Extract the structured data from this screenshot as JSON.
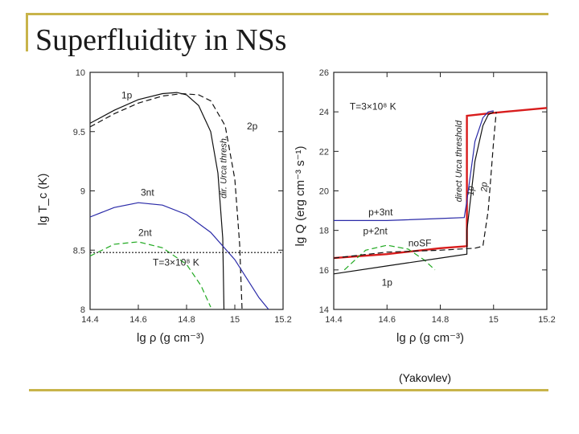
{
  "slide": {
    "title": "Superfluidity in NSs",
    "credit": "(Yakovlev)",
    "accent_color": "#c8b44a"
  },
  "chart_data": [
    {
      "type": "line",
      "xlabel": "lg ρ (g cm⁻³)",
      "ylabel": "lg T_c (K)",
      "xlim": [
        14.4,
        15.2
      ],
      "ylim": [
        8,
        10
      ],
      "xticks": [
        "14.4",
        "14.6",
        "14.8",
        "15",
        "15.2"
      ],
      "yticks": [
        "8",
        "8.5",
        "9",
        "9.5",
        "10"
      ],
      "grid": false,
      "series": [
        {
          "name": "1p",
          "color": "#111111",
          "dash": "solid",
          "x": [
            14.4,
            14.5,
            14.6,
            14.7,
            14.76,
            14.8,
            14.85,
            14.9,
            14.93,
            14.95,
            14.955
          ],
          "y": [
            9.57,
            9.68,
            9.77,
            9.82,
            9.83,
            9.81,
            9.72,
            9.5,
            9.15,
            8.6,
            8.0
          ]
        },
        {
          "name": "",
          "color": "#111111",
          "dash": "dashed",
          "x": [
            14.4,
            14.5,
            14.6,
            14.7,
            14.78,
            14.85,
            14.9,
            14.96,
            15.0,
            15.02,
            15.03
          ],
          "y": [
            9.54,
            9.65,
            9.74,
            9.8,
            9.82,
            9.81,
            9.76,
            9.55,
            9.1,
            8.55,
            8.0
          ]
        },
        {
          "name": "3nt",
          "color": "#2a2aa8",
          "dash": "solid",
          "x": [
            14.4,
            14.5,
            14.6,
            14.7,
            14.8,
            14.9,
            15.0,
            15.1,
            15.14
          ],
          "y": [
            8.78,
            8.86,
            8.9,
            8.88,
            8.8,
            8.65,
            8.42,
            8.1,
            8.0
          ]
        },
        {
          "name": "2nt",
          "color": "#22aa22",
          "dash": "dashed",
          "x": [
            14.4,
            14.5,
            14.6,
            14.7,
            14.8,
            14.86,
            14.9
          ],
          "y": [
            8.45,
            8.55,
            8.57,
            8.52,
            8.38,
            8.2,
            8.02
          ]
        },
        {
          "name": "",
          "color": "#111111",
          "dash": "dotted",
          "x": [
            14.4,
            15.2
          ],
          "y": [
            8.48,
            8.48
          ]
        }
      ],
      "annotations": [
        {
          "text": "1p",
          "x": 14.53,
          "y": 9.78
        },
        {
          "text": "2p",
          "x": 15.05,
          "y": 9.52
        },
        {
          "text": "3nt",
          "x": 14.61,
          "y": 8.96
        },
        {
          "text": "2nt",
          "x": 14.6,
          "y": 8.62
        },
        {
          "text": "T=3×10⁸ K",
          "x": 14.66,
          "y": 8.37
        },
        {
          "text": "dir. Urca thresh.",
          "x": 14.965,
          "y": 9.2,
          "rotate": -90
        }
      ]
    },
    {
      "type": "line",
      "xlabel": "lg ρ (g cm⁻³)",
      "ylabel": "lg Q (erg cm⁻³ s⁻¹)",
      "xlim": [
        14.4,
        15.2
      ],
      "ylim": [
        14,
        26
      ],
      "xticks": [
        "14.4",
        "14.6",
        "14.8",
        "15",
        "15.2"
      ],
      "yticks": [
        "14",
        "16",
        "18",
        "20",
        "22",
        "24",
        "26"
      ],
      "grid": false,
      "series": [
        {
          "name": "noSF",
          "color": "#d81c1c",
          "dash": "solid",
          "x": [
            14.4,
            14.6,
            14.8,
            14.9,
            14.9,
            15.0,
            15.2
          ],
          "y": [
            16.6,
            16.8,
            17.1,
            17.2,
            23.8,
            23.95,
            24.2
          ]
        },
        {
          "name": "p+3nt",
          "color": "#2a2aa8",
          "dash": "solid",
          "x": [
            14.4,
            14.6,
            14.8,
            14.89,
            14.9,
            14.93,
            14.96,
            14.98,
            15.0
          ],
          "y": [
            18.5,
            18.5,
            18.6,
            18.65,
            19.5,
            22.5,
            23.7,
            24.0,
            24.05
          ]
        },
        {
          "name": "p+2nt",
          "color": "#22aa22",
          "dash": "dashed",
          "x": [
            14.44,
            14.52,
            14.6,
            14.68,
            14.74,
            14.78
          ],
          "y": [
            16.0,
            17.0,
            17.25,
            17.05,
            16.5,
            16.0
          ]
        },
        {
          "name": "1p",
          "color": "#111111",
          "dash": "solid",
          "x": [
            14.4,
            14.6,
            14.8,
            14.9,
            14.9,
            14.93,
            14.96,
            14.98,
            15.0
          ],
          "y": [
            15.8,
            16.2,
            16.6,
            16.8,
            18.0,
            21.5,
            23.3,
            23.85,
            24.0
          ]
        },
        {
          "name": "2p",
          "color": "#111111",
          "dash": "dashed",
          "x": [
            14.4,
            14.6,
            14.8,
            14.93,
            14.96,
            14.98,
            15.0,
            15.01
          ],
          "y": [
            16.6,
            16.9,
            17.0,
            17.1,
            17.2,
            19.0,
            22.5,
            24.0
          ]
        }
      ],
      "annotations": [
        {
          "text": "T=3×10⁸ K",
          "x": 14.46,
          "y": 24.1
        },
        {
          "text": "p+3nt",
          "x": 14.53,
          "y": 18.75
        },
        {
          "text": "p+2nt",
          "x": 14.51,
          "y": 17.8
        },
        {
          "text": "noSF",
          "x": 14.68,
          "y": 17.2
        },
        {
          "text": "1p",
          "x": 14.58,
          "y": 15.2
        },
        {
          "text": "direct Urca threshold",
          "x": 14.88,
          "y": 21.5,
          "rotate": -90
        },
        {
          "text": "1p",
          "x": 14.925,
          "y": 20.0,
          "rotate": -90
        },
        {
          "text": "2p",
          "x": 14.975,
          "y": 20.2,
          "rotate": -90
        }
      ]
    }
  ]
}
